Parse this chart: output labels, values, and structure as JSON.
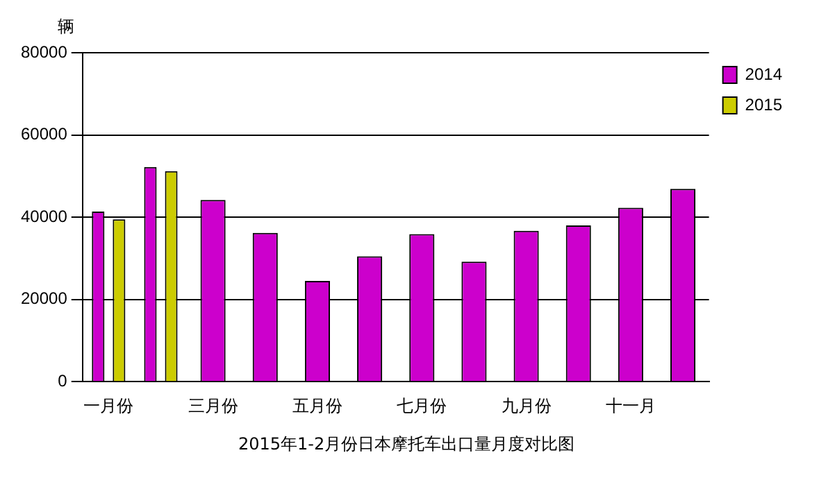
{
  "chart_data": {
    "type": "bar",
    "title": "2015年1-2月份日本摩托车出口量月度对比图",
    "ylabel": "辆",
    "categories": [
      "一月份",
      null,
      "三月份",
      null,
      "五月份",
      null,
      "七月份",
      null,
      "九月份",
      null,
      "十一月",
      null
    ],
    "series": [
      {
        "name": "2014",
        "color": "#cc00cc",
        "values": [
          41400,
          52200,
          44200,
          36200,
          24500,
          30500,
          35900,
          29200,
          36700,
          38000,
          42300,
          46900
        ]
      },
      {
        "name": "2015",
        "color": "#cccc00",
        "values": [
          39500,
          51200,
          null,
          null,
          null,
          null,
          null,
          null,
          null,
          null,
          null,
          null
        ]
      }
    ],
    "ylim": [
      0,
      80000
    ],
    "yticks": [
      0,
      20000,
      40000,
      60000,
      80000
    ],
    "grid": "y",
    "legend": "top right"
  }
}
